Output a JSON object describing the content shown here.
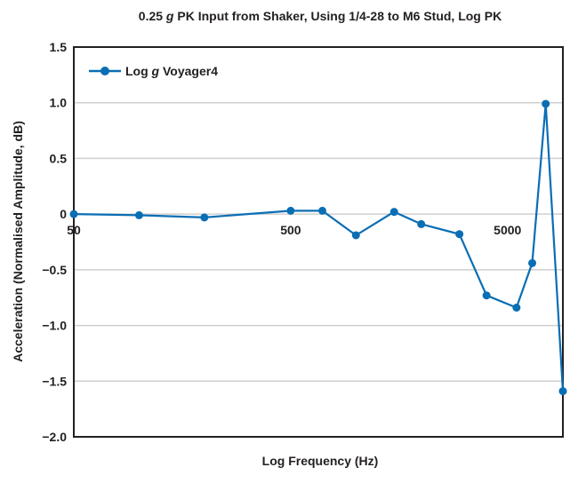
{
  "chart_data": {
    "type": "line",
    "title_parts": [
      "0.25 ",
      "g",
      " PK Input from Shaker, Using 1/4-28 to M6 Stud, Log PK"
    ],
    "xlabel": "Log Frequency (Hz)",
    "ylabel": "Acceleration (Normalised Amplitude, dB)",
    "x_scale": "log",
    "xlim": [
      50,
      9000
    ],
    "ylim": [
      -2.0,
      1.5
    ],
    "x_ticks": [
      50,
      500,
      5000
    ],
    "x_tick_labels": [
      "50",
      "500",
      "5000"
    ],
    "y_ticks": [
      1.5,
      1.0,
      0.5,
      0,
      -0.5,
      -1.0,
      -1.5,
      -2.0
    ],
    "y_tick_labels": [
      "1.5",
      "1.0",
      "0.5",
      "0",
      "−0.5",
      "−1.0",
      "−1.5",
      "−2.0"
    ],
    "grid": "horizontal",
    "legend_placement": "top-left",
    "series": [
      {
        "name_parts": [
          "Log ",
          "g",
          " Voyager4"
        ],
        "color": "#0a6eb4",
        "x": [
          50,
          100,
          200,
          500,
          700,
          1000,
          1500,
          2000,
          3000,
          4000,
          5500,
          6500,
          7500,
          9000
        ],
        "y": [
          0,
          -0.01,
          -0.03,
          0.03,
          0.03,
          -0.19,
          0.02,
          -0.09,
          -0.18,
          -0.73,
          -0.84,
          -0.44,
          0.99,
          -1.59
        ]
      }
    ]
  }
}
